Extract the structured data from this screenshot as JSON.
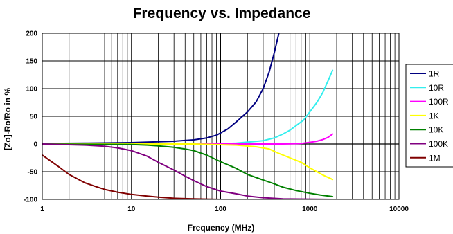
{
  "chart_data": {
    "type": "line",
    "title": "Frequency vs. Impedance",
    "xlabel": "Frequency (MHz)",
    "ylabel": "[Zo]-Ro/Ro in %",
    "x_scale": "log",
    "xlim": [
      1,
      10000
    ],
    "ylim": [
      -100,
      200
    ],
    "x_ticks": [
      1,
      10,
      100,
      1000,
      10000
    ],
    "x_tick_labels": [
      "1",
      "10",
      "100",
      "1000",
      "10000"
    ],
    "y_ticks": [
      200,
      150,
      100,
      50,
      0,
      -50,
      -100
    ],
    "y_tick_labels": [
      "200",
      "150",
      "100",
      "50",
      "0",
      "-50",
      "-100"
    ],
    "grid": true,
    "legend_position": "right",
    "series": [
      {
        "name": "1R",
        "color": "#000080",
        "points": [
          [
            1,
            1
          ],
          [
            3,
            1.5
          ],
          [
            10,
            2.5
          ],
          [
            20,
            4
          ],
          [
            30,
            5
          ],
          [
            50,
            7.5
          ],
          [
            70,
            11
          ],
          [
            90,
            16
          ],
          [
            120,
            27
          ],
          [
            150,
            40
          ],
          [
            200,
            58
          ],
          [
            250,
            76
          ],
          [
            300,
            100
          ],
          [
            350,
            130
          ],
          [
            400,
            165
          ],
          [
            450,
            200
          ]
        ]
      },
      {
        "name": "10R",
        "color": "#33EEEE",
        "points": [
          [
            1,
            0
          ],
          [
            50,
            0
          ],
          [
            100,
            0.5
          ],
          [
            150,
            1.5
          ],
          [
            200,
            3.5
          ],
          [
            300,
            6
          ],
          [
            400,
            11
          ],
          [
            500,
            18
          ],
          [
            600,
            25
          ],
          [
            700,
            33
          ],
          [
            850,
            43
          ],
          [
            1000,
            58
          ],
          [
            1200,
            75
          ],
          [
            1400,
            93
          ],
          [
            1600,
            114
          ],
          [
            1800,
            133
          ]
        ]
      },
      {
        "name": "100R",
        "color": "#FF00FF",
        "points": [
          [
            1,
            0
          ],
          [
            500,
            0
          ],
          [
            800,
            1
          ],
          [
            1000,
            3
          ],
          [
            1200,
            5
          ],
          [
            1400,
            8
          ],
          [
            1600,
            12
          ],
          [
            1800,
            18
          ]
        ]
      },
      {
        "name": "1K",
        "color": "#FFFF00",
        "points": [
          [
            1,
            0
          ],
          [
            50,
            0
          ],
          [
            150,
            -2
          ],
          [
            250,
            -5
          ],
          [
            350,
            -9
          ],
          [
            450,
            -17
          ],
          [
            600,
            -25
          ],
          [
            800,
            -33
          ],
          [
            1000,
            -43
          ],
          [
            1200,
            -50
          ],
          [
            1400,
            -56
          ],
          [
            1800,
            -64
          ]
        ]
      },
      {
        "name": "10K",
        "color": "#008000",
        "points": [
          [
            1,
            0
          ],
          [
            10,
            -1
          ],
          [
            15,
            -2
          ],
          [
            20,
            -3.5
          ],
          [
            30,
            -6
          ],
          [
            40,
            -9
          ],
          [
            50,
            -12
          ],
          [
            70,
            -20
          ],
          [
            100,
            -32
          ],
          [
            150,
            -44
          ],
          [
            200,
            -55
          ],
          [
            300,
            -65
          ],
          [
            400,
            -72
          ],
          [
            500,
            -78
          ],
          [
            700,
            -84
          ],
          [
            1000,
            -89
          ],
          [
            1300,
            -92
          ],
          [
            1800,
            -95
          ]
        ]
      },
      {
        "name": "100K",
        "color": "#800080",
        "points": [
          [
            1,
            0
          ],
          [
            3,
            -2
          ],
          [
            5,
            -4
          ],
          [
            7,
            -7
          ],
          [
            10,
            -12
          ],
          [
            15,
            -22
          ],
          [
            20,
            -33
          ],
          [
            30,
            -47
          ],
          [
            40,
            -58
          ],
          [
            50,
            -66
          ],
          [
            70,
            -77
          ],
          [
            100,
            -85
          ],
          [
            150,
            -90
          ],
          [
            200,
            -94
          ],
          [
            300,
            -97
          ],
          [
            500,
            -99
          ],
          [
            1800,
            -100
          ]
        ]
      },
      {
        "name": "1M",
        "color": "#800000",
        "points": [
          [
            1,
            -20
          ],
          [
            1.5,
            -40
          ],
          [
            2,
            -55
          ],
          [
            3,
            -70
          ],
          [
            4,
            -77
          ],
          [
            5,
            -82
          ],
          [
            7,
            -87
          ],
          [
            10,
            -91
          ],
          [
            15,
            -94
          ],
          [
            20,
            -96
          ],
          [
            30,
            -98
          ],
          [
            50,
            -99
          ],
          [
            100,
            -100
          ],
          [
            1800,
            -100
          ]
        ]
      }
    ]
  }
}
